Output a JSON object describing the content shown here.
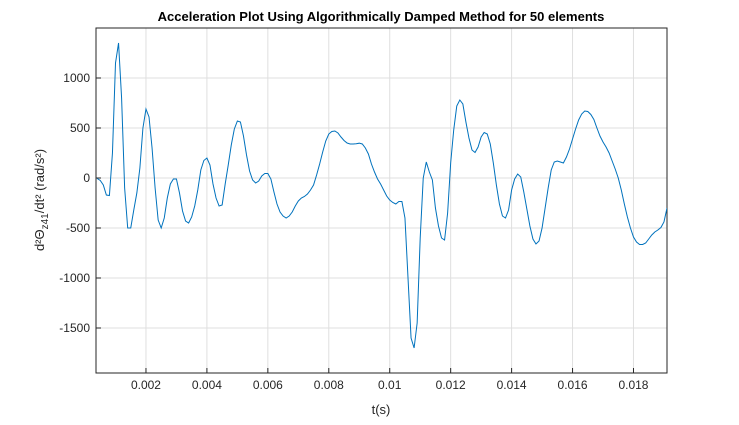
{
  "chart_data": {
    "type": "line",
    "title": "Acceleration Plot Using Algorithmically Damped Method for 50 elements",
    "xlabel": "t(s)",
    "ylabel_parts": [
      "d²Θ",
      "z41",
      "/dt²  (rad/s²)"
    ],
    "color": "#0072bd",
    "grid": true,
    "xlim": [
      0.00036,
      0.0191
    ],
    "ylim": [
      -1950,
      1500
    ],
    "xticks": [
      0.002,
      0.004,
      0.006,
      0.008,
      0.01,
      0.012,
      0.014,
      0.016,
      0.018
    ],
    "yticks": [
      -1500,
      -1000,
      -500,
      0,
      500,
      1000
    ],
    "x": [
      0.0004,
      0.0005,
      0.0006,
      0.0007,
      0.0008,
      0.0009,
      0.001,
      0.0011,
      0.0012,
      0.0013,
      0.0014,
      0.0015,
      0.0016,
      0.0017,
      0.0018,
      0.0019,
      0.002,
      0.0021,
      0.0022,
      0.0023,
      0.0024,
      0.0025,
      0.0026,
      0.0027,
      0.0028,
      0.0029,
      0.003,
      0.0031,
      0.0032,
      0.0033,
      0.0034,
      0.0035,
      0.0036,
      0.0037,
      0.0038,
      0.0039,
      0.004,
      0.0041,
      0.0042,
      0.0043,
      0.0044,
      0.0045,
      0.0046,
      0.0047,
      0.0048,
      0.0049,
      0.005,
      0.0051,
      0.0052,
      0.0053,
      0.0054,
      0.0055,
      0.0056,
      0.0057,
      0.0058,
      0.0059,
      0.006,
      0.0061,
      0.0062,
      0.0063,
      0.0064,
      0.0065,
      0.0066,
      0.0067,
      0.0068,
      0.0069,
      0.007,
      0.0071,
      0.0072,
      0.0073,
      0.0074,
      0.0075,
      0.0076,
      0.0077,
      0.0078,
      0.0079,
      0.008,
      0.0081,
      0.0082,
      0.0083,
      0.0084,
      0.0085,
      0.0086,
      0.0087,
      0.0088,
      0.0089,
      0.009,
      0.0091,
      0.0092,
      0.0093,
      0.0094,
      0.0095,
      0.0096,
      0.0097,
      0.0098,
      0.0099,
      0.01,
      0.0101,
      0.0102,
      0.0103,
      0.0104,
      0.0105,
      0.0106,
      0.0107,
      0.0108,
      0.0109,
      0.011,
      0.0111,
      0.0112,
      0.0113,
      0.0114,
      0.0115,
      0.0116,
      0.0117,
      0.0118,
      0.0119,
      0.012,
      0.0121,
      0.0122,
      0.0123,
      0.0124,
      0.0125,
      0.0126,
      0.0127,
      0.0128,
      0.0129,
      0.013,
      0.0131,
      0.0132,
      0.0133,
      0.0134,
      0.0135,
      0.0136,
      0.0137,
      0.0138,
      0.0139,
      0.014,
      0.0141,
      0.0142,
      0.0143,
      0.0144,
      0.0145,
      0.0146,
      0.0147,
      0.0148,
      0.0149,
      0.015,
      0.0151,
      0.0152,
      0.0153,
      0.0154,
      0.0155,
      0.0156,
      0.0157,
      0.0158,
      0.0159,
      0.016,
      0.0161,
      0.0162,
      0.0163,
      0.0164,
      0.0165,
      0.0166,
      0.0167,
      0.0168,
      0.0169,
      0.017,
      0.0171,
      0.0172,
      0.0173,
      0.0174,
      0.0175,
      0.0176,
      0.0177,
      0.0178,
      0.0179,
      0.018,
      0.0181,
      0.0182,
      0.0183,
      0.0184,
      0.0185,
      0.0186,
      0.0187,
      0.0188,
      0.0189,
      0.019,
      0.0191
    ],
    "values": [
      -5,
      -25,
      -70,
      -170,
      -175,
      250,
      1150,
      1350,
      800,
      -100,
      -500,
      -500,
      -320,
      -150,
      100,
      500,
      690,
      610,
      300,
      -100,
      -420,
      -500,
      -400,
      -200,
      -60,
      -10,
      -10,
      -150,
      -330,
      -430,
      -450,
      -390,
      -280,
      -120,
      80,
      175,
      200,
      130,
      -60,
      -200,
      -280,
      -270,
      -60,
      130,
      330,
      490,
      570,
      560,
      420,
      230,
      70,
      -20,
      -50,
      -30,
      20,
      45,
      45,
      -10,
      -140,
      -260,
      -340,
      -380,
      -400,
      -380,
      -340,
      -280,
      -230,
      -200,
      -185,
      -160,
      -120,
      -70,
      30,
      140,
      260,
      370,
      440,
      465,
      470,
      450,
      410,
      375,
      350,
      340,
      340,
      342,
      348,
      340,
      300,
      240,
      140,
      60,
      -10,
      -60,
      -120,
      -180,
      -220,
      -245,
      -260,
      -235,
      -235,
      -400,
      -1000,
      -1600,
      -1700,
      -1450,
      -600,
      0,
      160,
      60,
      -20,
      -300,
      -480,
      -600,
      -620,
      -350,
      150,
      480,
      720,
      780,
      740,
      560,
      400,
      280,
      255,
      310,
      410,
      455,
      440,
      340,
      150,
      -70,
      -260,
      -380,
      -400,
      -320,
      -120,
      -10,
      40,
      10,
      -140,
      -310,
      -480,
      -610,
      -660,
      -630,
      -500,
      -300,
      -100,
      80,
      160,
      170,
      160,
      150,
      210,
      290,
      390,
      490,
      580,
      640,
      670,
      665,
      635,
      585,
      500,
      420,
      360,
      310,
      250,
      170,
      90,
      0,
      -120,
      -260,
      -390,
      -500,
      -590,
      -640,
      -665,
      -665,
      -650,
      -610,
      -570,
      -540,
      -520,
      -495,
      -440,
      -300
    ]
  }
}
